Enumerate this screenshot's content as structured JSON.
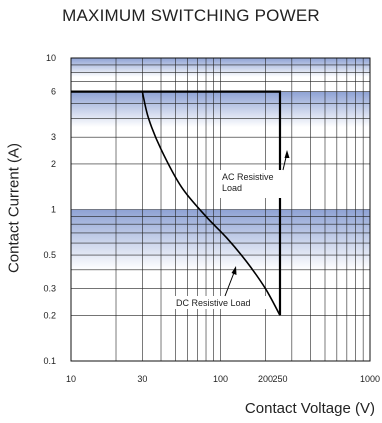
{
  "chart_data": {
    "type": "line",
    "title": "MAXIMUM SWITCHING POWER",
    "xlabel": "Contact Voltage (V)",
    "ylabel": "Contact Current (A)",
    "x_scale": "log",
    "y_scale": "log",
    "xlim": [
      10,
      1000
    ],
    "ylim": [
      0.1,
      10
    ],
    "x_ticks": [
      {
        "value": 10,
        "label": "10"
      },
      {
        "value": 30,
        "label": "30"
      },
      {
        "value": 100,
        "label": "100"
      },
      {
        "value": 200,
        "label": "200"
      },
      {
        "value": 250,
        "label": "250"
      },
      {
        "value": 1000,
        "label": "1000"
      }
    ],
    "y_ticks": [
      {
        "value": 0.1,
        "label": "0.1"
      },
      {
        "value": 0.2,
        "label": "0.2"
      },
      {
        "value": 0.3,
        "label": "0.3"
      },
      {
        "value": 0.5,
        "label": "0.5"
      },
      {
        "value": 1,
        "label": "1"
      },
      {
        "value": 2,
        "label": "2"
      },
      {
        "value": 3,
        "label": "3"
      },
      {
        "value": 6,
        "label": "6"
      },
      {
        "value": 10,
        "label": "10"
      }
    ],
    "grid": true,
    "series": [
      {
        "name": "AC Resistive Load",
        "x": [
          10,
          250,
          250
        ],
        "y": [
          6,
          6,
          0.2
        ]
      },
      {
        "name": "DC Resistive Load",
        "x": [
          30,
          33,
          40,
          55,
          80,
          110,
          150,
          200,
          250
        ],
        "y": [
          6,
          4,
          2.5,
          1.4,
          0.9,
          0.65,
          0.45,
          0.3,
          0.2
        ]
      }
    ],
    "annotations": [
      {
        "lines": [
          "AC Resistive",
          "Load"
        ]
      },
      {
        "lines": [
          "DC Resistive Load"
        ]
      }
    ]
  }
}
